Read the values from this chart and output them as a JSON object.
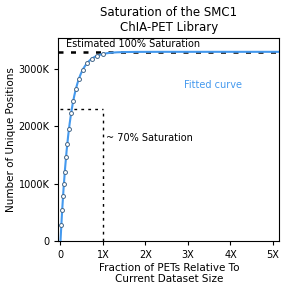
{
  "title": "Saturation of the SMC1\nChIA-PET Library",
  "xlabel": "Fraction of PETs Relative To\nCurrent Dataset Size",
  "ylabel": "Number of Unique Positions",
  "xlim": [
    -0.05,
    5.15
  ],
  "ylim": [
    0,
    3550000
  ],
  "xticks": [
    0,
    1,
    2,
    3,
    4,
    5
  ],
  "xticklabels": [
    "0",
    "1X",
    "2X",
    "3X",
    "4X",
    "5X"
  ],
  "yticks": [
    0,
    1000000,
    2000000,
    3000000
  ],
  "yticklabels": [
    "0",
    "1000K",
    "2000K",
    "3000K"
  ],
  "saturation_y": 3300000,
  "saturation_70_x": 1.0,
  "saturation_70_y": 2300000,
  "curve_color": "#4499ee",
  "curve_b": 4.5,
  "data_points_x": [
    0.02,
    0.04,
    0.06,
    0.08,
    0.1,
    0.13,
    0.16,
    0.2,
    0.25,
    0.3,
    0.36,
    0.43,
    0.52,
    0.62,
    0.74,
    0.87,
    1.0
  ],
  "annotation_100_text": "Estimated 100% Saturation",
  "annotation_70_text": "~ 70% Saturation",
  "annotation_fitted_text": "Fitted curve",
  "fitted_text_color": "#4499ee",
  "bg_color": "#ffffff",
  "title_fontsize": 8.5,
  "axis_fontsize": 7.5,
  "tick_fontsize": 7,
  "annot_fontsize": 7
}
